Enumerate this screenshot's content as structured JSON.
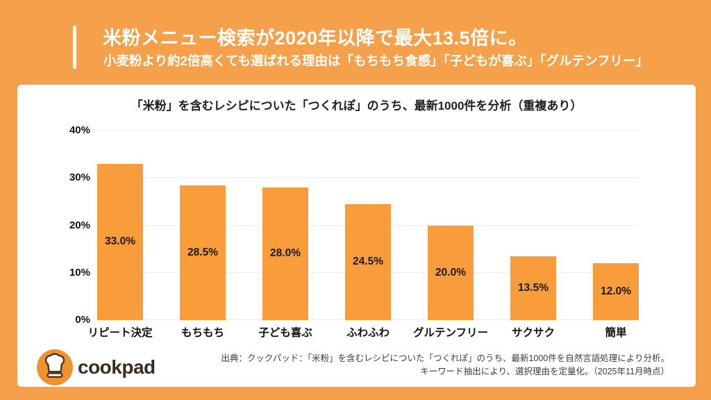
{
  "header": {
    "title": "米粉メニュー検索が2020年以降で最大13.5倍に。",
    "subtitle": "小麦粉より約2倍高くても選ばれる理由は「もちもち食感」「子どもが喜ぶ」「グルテンフリー」"
  },
  "chart_data": {
    "type": "bar",
    "title": "「米粉」を含むレシピについた「つくれぽ」のうち、最新1000件を分析（重複あり）",
    "categories": [
      "リピート決定",
      "もちもち",
      "子ども喜ぶ",
      "ふわふわ",
      "グルテンフリー",
      "サクサク",
      "簡単"
    ],
    "values": [
      33.0,
      28.5,
      28.0,
      24.5,
      20.0,
      13.5,
      12.0
    ],
    "value_labels": [
      "33.0%",
      "28.5%",
      "28.0%",
      "24.5%",
      "20.0%",
      "13.5%",
      "12.0%"
    ],
    "xlabel": "",
    "ylabel": "",
    "ylim": [
      0,
      40
    ],
    "yticks": [
      0,
      10,
      20,
      30,
      40
    ],
    "ytick_labels": [
      "0%",
      "10%",
      "20%",
      "30%",
      "40%"
    ],
    "grid": true,
    "legend": false,
    "bar_color": "#F89C3C"
  },
  "footer": {
    "logo_text": "cookpad",
    "source_line1": "出典：クックパッド：「米粉」を含むレシピについた「つくれぽ」のうち、最新1000件を自然言語処理により分析。",
    "source_line2": "キーワード抽出により、選択理由を定量化。（2025年11月時点）"
  },
  "colors": {
    "background": "#F5A04B",
    "bar": "#F89C3C",
    "card": "#FFFFFF",
    "logo_circle": "#F0932F",
    "logo_text": "#3F2B1E",
    "header_text": "#FFFFFF"
  }
}
